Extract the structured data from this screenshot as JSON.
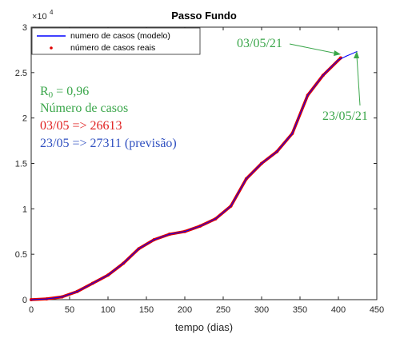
{
  "chart_data": {
    "type": "line",
    "title": "Passo Fundo",
    "xlabel": "tempo (dias)",
    "ylabel": "",
    "xlim": [
      0,
      450
    ],
    "ylim": [
      0,
      30000
    ],
    "x_ticks": [
      0,
      50,
      100,
      150,
      200,
      250,
      300,
      350,
      400,
      450
    ],
    "y_ticks": [
      0,
      5000,
      10000,
      15000,
      20000,
      25000,
      30000
    ],
    "y_tick_labels": [
      "0",
      "0.5",
      "1",
      "1.5",
      "2",
      "2.5",
      "3"
    ],
    "y_exponent_label": "×10",
    "y_exponent_power": "4",
    "grid": false,
    "legend_position": "top-left",
    "series": [
      {
        "name": "numero de casos (modelo)",
        "color": "#0000ff",
        "style": "line",
        "x": [
          0,
          20,
          40,
          60,
          80,
          100,
          120,
          140,
          160,
          180,
          200,
          220,
          240,
          260,
          280,
          300,
          320,
          340,
          360,
          380,
          400,
          410,
          424
        ],
        "y": [
          0,
          80,
          300,
          900,
          1800,
          2700,
          4000,
          5600,
          6600,
          7200,
          7500,
          8100,
          8900,
          10300,
          13300,
          15000,
          16300,
          18300,
          22500,
          24700,
          26400,
          26800,
          27311
        ]
      },
      {
        "name": "número de casos reais",
        "color": "#e00000",
        "style": "markers",
        "x": [
          0,
          20,
          40,
          60,
          80,
          100,
          120,
          140,
          160,
          180,
          200,
          220,
          240,
          260,
          280,
          300,
          320,
          340,
          360,
          380,
          403
        ],
        "y": [
          0,
          80,
          300,
          900,
          1800,
          2700,
          4000,
          5600,
          6600,
          7200,
          7500,
          8100,
          8900,
          10300,
          13300,
          15000,
          16300,
          18300,
          22500,
          24700,
          26613
        ]
      }
    ],
    "annotations": {
      "r0_letter": "R",
      "r0_sub": "0",
      "r0_rest": " = 0,96",
      "cases_title": "Número de casos",
      "line1": "03/05 => 26613",
      "line2": "23/05 => 27311 (previsão)",
      "arrow1_label": "03/05/21",
      "arrow2_label": "23/05/21",
      "color_green": "#3aa64a",
      "color_red": "#e02020",
      "color_blue": "#3050c0"
    }
  }
}
